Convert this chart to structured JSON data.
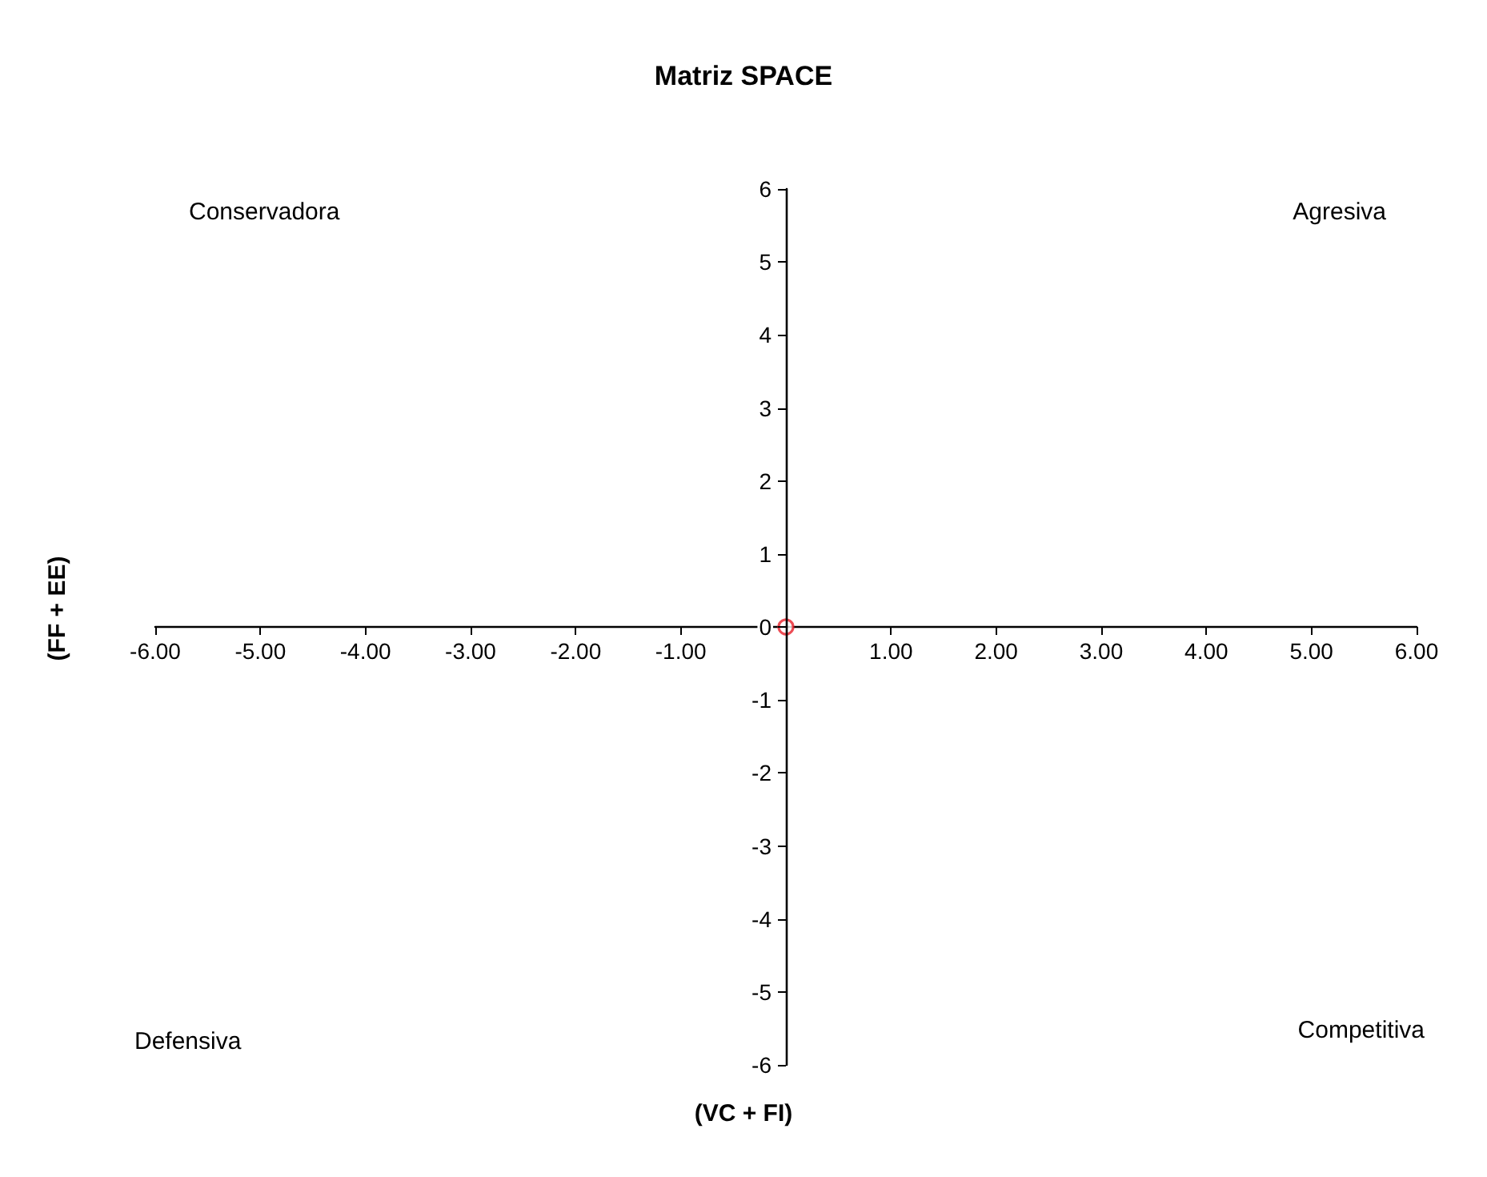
{
  "chart_data": {
    "type": "scatter",
    "title": "Matriz SPACE",
    "xlabel": "(VC + FI)",
    "ylabel": "(FF + EE)",
    "annotations": [
      "Conservadora",
      "Agresiva",
      "Defensiva",
      "Competitiva"
    ],
    "series": [
      {
        "x": [
          0
        ],
        "values": [
          0
        ],
        "color": "#e8202a"
      }
    ],
    "marker": "circle",
    "xlim": [
      -6,
      6
    ],
    "xticks": [
      {
        "value": -6,
        "label": "-6.00"
      },
      {
        "value": -5,
        "label": "-5.00"
      },
      {
        "value": -4,
        "label": "-4.00"
      },
      {
        "value": -3,
        "label": "-3.00"
      },
      {
        "value": -2,
        "label": "-2.00"
      },
      {
        "value": -1,
        "label": "-1.00"
      },
      {
        "value": 0,
        "label": null
      },
      {
        "value": 1,
        "label": "1.00"
      },
      {
        "value": 2,
        "label": "2.00"
      },
      {
        "value": 3,
        "label": "3.00"
      },
      {
        "value": 4,
        "label": "4.00"
      },
      {
        "value": 5,
        "label": "5.00"
      },
      {
        "value": 6,
        "label": "6.00"
      }
    ],
    "ylim": [
      -6,
      6
    ],
    "yticks": [
      -6,
      -5,
      -4,
      -3,
      -2,
      -1,
      0,
      1,
      2,
      3,
      4,
      5,
      6
    ]
  }
}
